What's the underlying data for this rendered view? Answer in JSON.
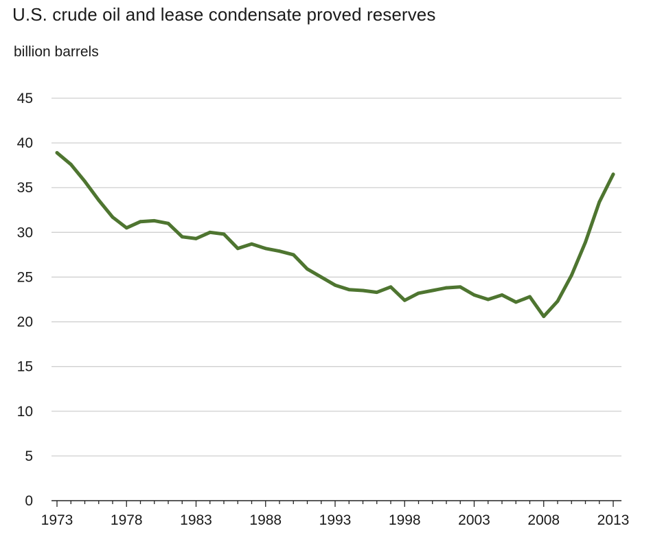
{
  "chart_data": {
    "type": "line",
    "title": "U.S. crude oil and lease condensate proved reserves",
    "ylabel": "billion barrels",
    "xlabel": "",
    "ylim": [
      0,
      45
    ],
    "xlim": [
      1973,
      2013
    ],
    "yticks": [
      0,
      5,
      10,
      15,
      20,
      25,
      30,
      35,
      40,
      45
    ],
    "xticks": [
      1973,
      1978,
      1983,
      1988,
      1993,
      1998,
      2003,
      2008,
      2013
    ],
    "grid": "horizontal",
    "line_color": "#4e7530",
    "series": [
      {
        "x": [
          1973,
          1974,
          1975,
          1976,
          1977,
          1978,
          1979,
          1980,
          1981,
          1982,
          1983,
          1984,
          1985,
          1986,
          1987,
          1988,
          1989,
          1990,
          1991,
          1992,
          1993,
          1994,
          1995,
          1996,
          1997,
          1998,
          1999,
          2000,
          2001,
          2002,
          2003,
          2004,
          2005,
          2006,
          2007,
          2008,
          2009,
          2010,
          2011,
          2012,
          2013
        ],
        "values": [
          38.9,
          37.6,
          35.7,
          33.6,
          31.7,
          30.5,
          31.2,
          31.3,
          31.0,
          29.5,
          29.3,
          30.0,
          29.8,
          28.2,
          28.7,
          28.2,
          27.9,
          27.5,
          25.9,
          25.0,
          24.1,
          23.6,
          23.5,
          23.3,
          23.9,
          22.4,
          23.2,
          23.5,
          23.8,
          23.9,
          23.0,
          22.5,
          23.0,
          22.2,
          22.8,
          20.6,
          22.3,
          25.2,
          28.9,
          33.4,
          36.5
        ]
      }
    ]
  }
}
